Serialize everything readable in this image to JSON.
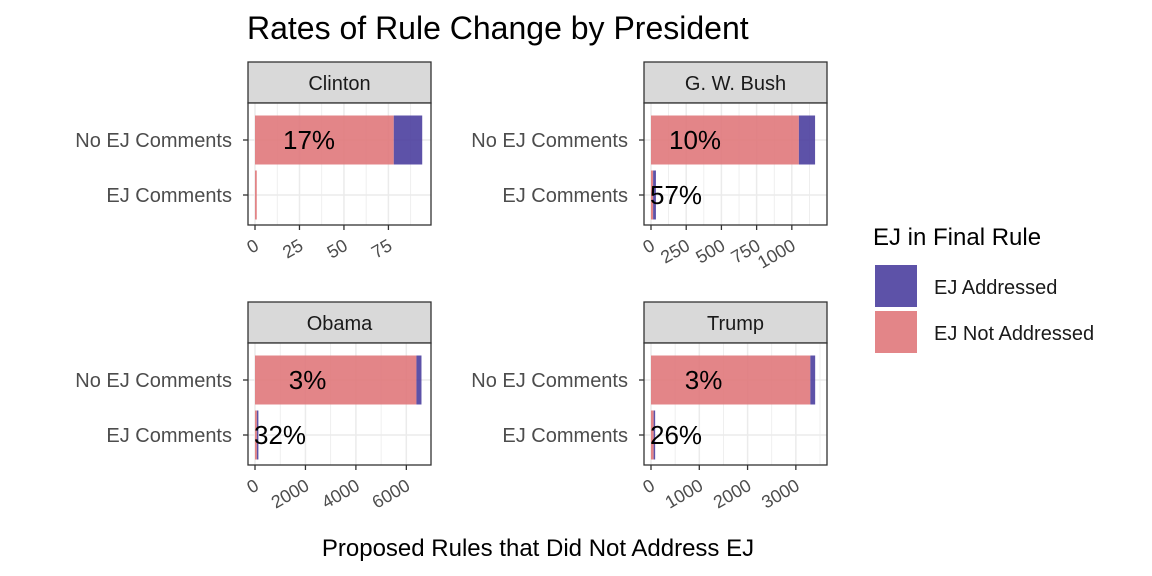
{
  "chart_data": {
    "type": "bar",
    "orientation": "horizontal",
    "stacked": true,
    "title": "Rates of Rule Change by President",
    "xlabel": "Proposed Rules that Did Not Address EJ",
    "categories": [
      "No EJ Comments",
      "EJ Comments"
    ],
    "legend": {
      "title": "EJ in Final Rule",
      "position": "right",
      "items": [
        {
          "name": "EJ Addressed",
          "color": "#4b3f9e"
        },
        {
          "name": "EJ Not Addressed",
          "color": "#e0787b"
        }
      ]
    },
    "grid": true,
    "panels": [
      {
        "president": "Clinton",
        "xlim": [
          0,
          95
        ],
        "ticks": [
          0,
          25,
          50,
          75
        ],
        "tick_labels": [
          "0",
          "25",
          "50",
          "75"
        ],
        "bars": [
          {
            "category": "No EJ Comments",
            "not_addressed": 78,
            "addressed": 16,
            "label": "17%"
          },
          {
            "category": "EJ Comments",
            "not_addressed": 1,
            "addressed": 0,
            "label": ""
          }
        ]
      },
      {
        "president": "G. W. Bush",
        "xlim": [
          0,
          1200
        ],
        "ticks": [
          0,
          250,
          500,
          750,
          1000
        ],
        "tick_labels": [
          "0",
          "250",
          "500",
          "750",
          "1000"
        ],
        "bars": [
          {
            "category": "No EJ Comments",
            "not_addressed": 1050,
            "addressed": 115,
            "label": "10%"
          },
          {
            "category": "EJ Comments",
            "not_addressed": 15,
            "addressed": 20,
            "label": "57%"
          }
        ]
      },
      {
        "president": "Obama",
        "xlim": [
          0,
          6700
        ],
        "ticks": [
          0,
          2000,
          4000,
          6000
        ],
        "tick_labels": [
          "0",
          "2000",
          "4000",
          "6000"
        ],
        "bars": [
          {
            "category": "No EJ Comments",
            "not_addressed": 6400,
            "addressed": 200,
            "label": "3%"
          },
          {
            "category": "EJ Comments",
            "not_addressed": 75,
            "addressed": 35,
            "label": "32%"
          }
        ]
      },
      {
        "president": "Trump",
        "xlim": [
          0,
          3500
        ],
        "ticks": [
          0,
          1000,
          2000,
          3000
        ],
        "tick_labels": [
          "0",
          "1000",
          "2000",
          "3000"
        ],
        "bars": [
          {
            "category": "No EJ Comments",
            "not_addressed": 3300,
            "addressed": 100,
            "label": "3%"
          },
          {
            "category": "EJ Comments",
            "not_addressed": 55,
            "addressed": 20,
            "label": "26%"
          }
        ]
      }
    ]
  }
}
